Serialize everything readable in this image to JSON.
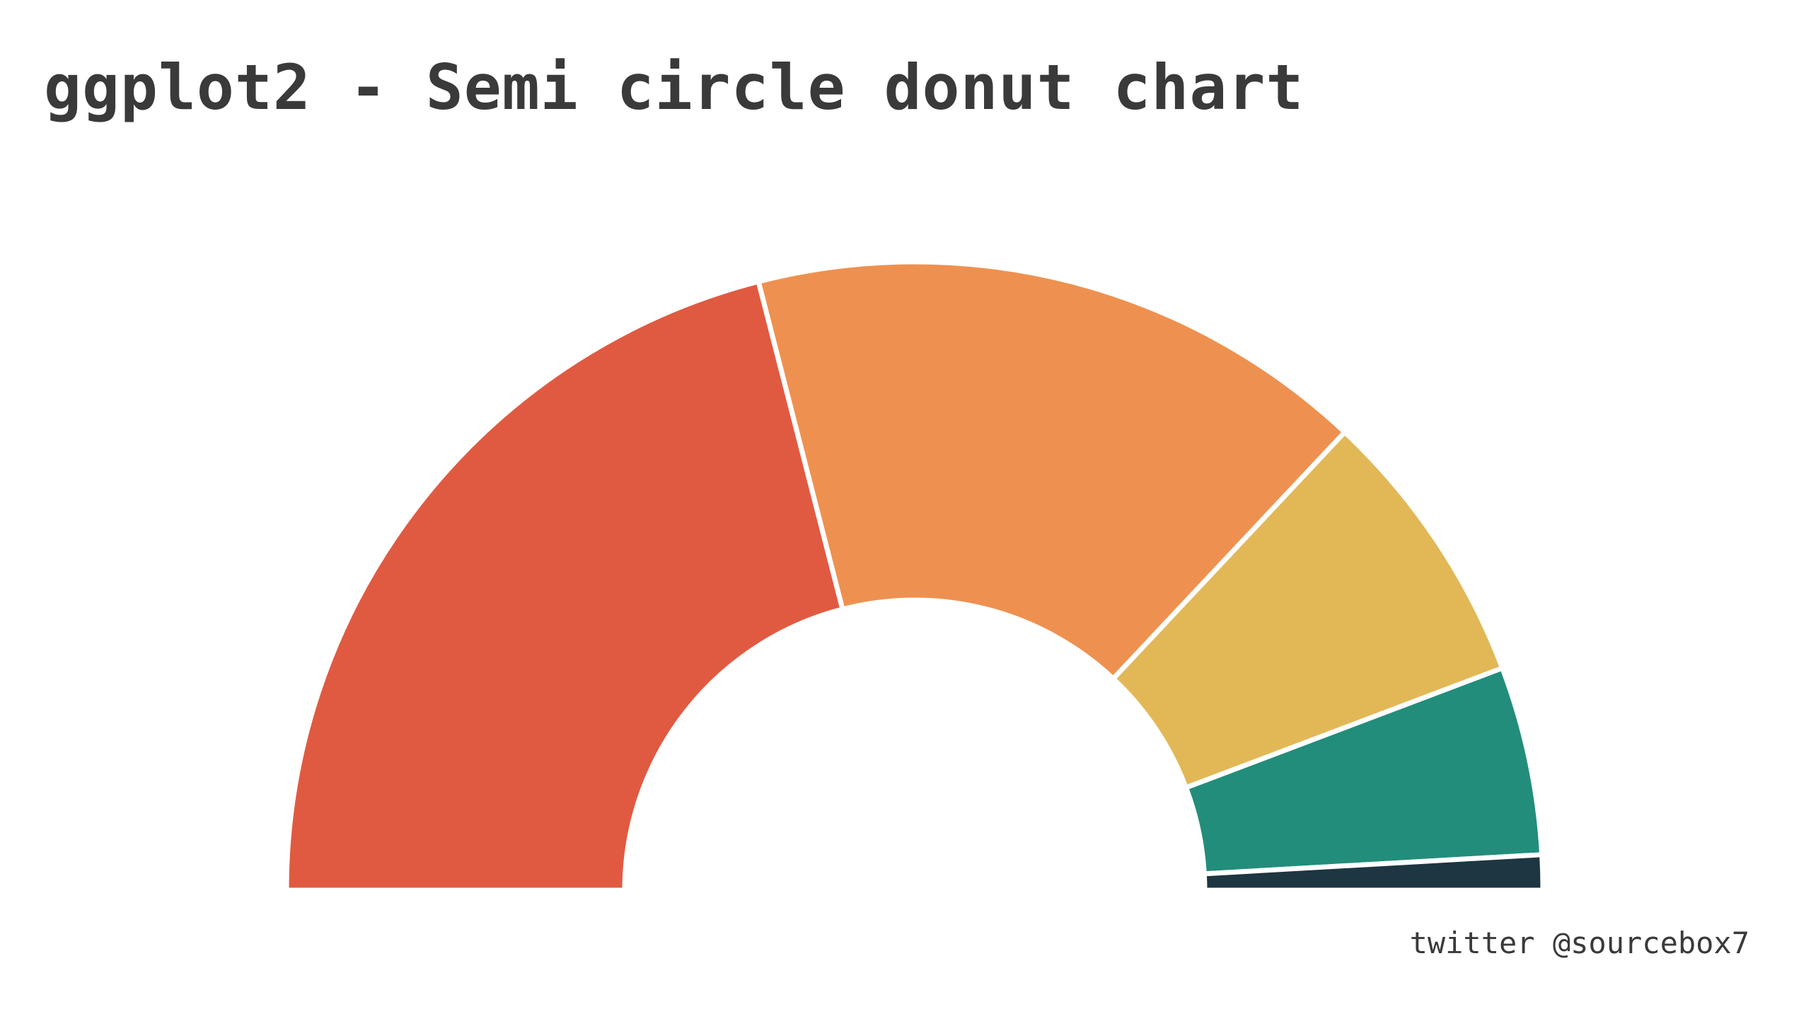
{
  "chart_data": {
    "type": "pie",
    "variant": "semi-circle donut",
    "title": "ggplot2 - Semi circle donut chart",
    "caption": "twitter @sourcebox7",
    "angle_span_degrees": 180,
    "slices": [
      {
        "value": 42.0,
        "color": "#E05A41"
      },
      {
        "value": 32.0,
        "color": "#EE9150"
      },
      {
        "value": 14.5,
        "color": "#E2B857"
      },
      {
        "value": 9.7,
        "color": "#228D7B"
      },
      {
        "value": 1.8,
        "color": "#1E3542"
      }
    ],
    "slice_border_color": "#ffffff",
    "legend": "none",
    "grid": false,
    "background": "#ffffff"
  }
}
